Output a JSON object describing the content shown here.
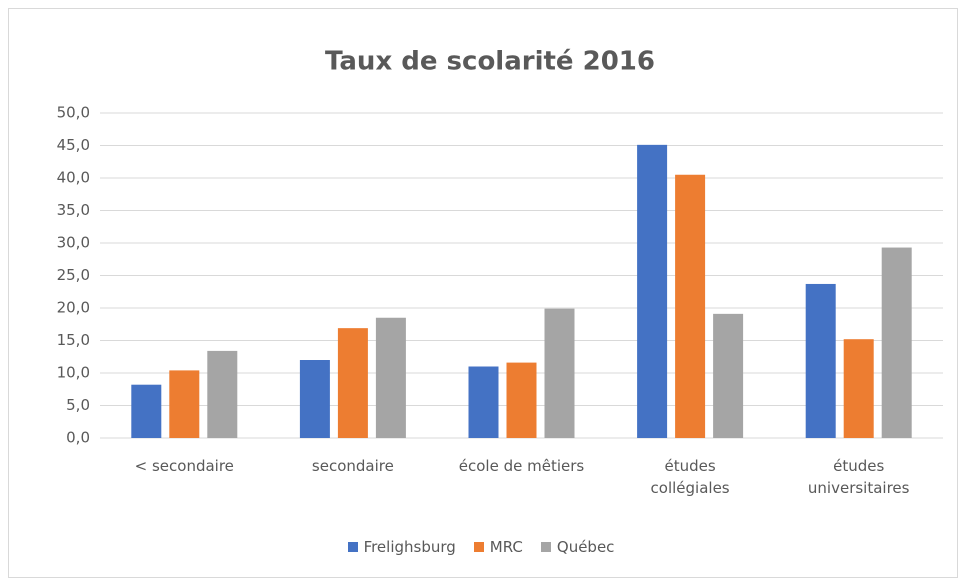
{
  "chart_data": {
    "type": "bar",
    "title": "Taux de scolarité 2016",
    "categories": [
      "< secondaire",
      "secondaire",
      "école de mêtiers",
      "études collégiales",
      "études universitaires"
    ],
    "series": [
      {
        "name": "Frelighsburg",
        "color": "#4472c4",
        "values": [
          8.2,
          12.0,
          11.0,
          45.1,
          23.7
        ]
      },
      {
        "name": "MRC",
        "color": "#ed7d31",
        "values": [
          10.4,
          16.9,
          11.6,
          40.5,
          15.2
        ]
      },
      {
        "name": "Québec",
        "color": "#a5a5a5",
        "values": [
          13.4,
          18.5,
          19.9,
          19.1,
          29.3
        ]
      }
    ],
    "ylim": [
      0,
      50
    ],
    "yticks": [
      {
        "value": 0,
        "label": "0,0"
      },
      {
        "value": 5,
        "label": "5,0"
      },
      {
        "value": 10,
        "label": "10,0"
      },
      {
        "value": 15,
        "label": "15,0"
      },
      {
        "value": 20,
        "label": "20,0"
      },
      {
        "value": 25,
        "label": "25,0"
      },
      {
        "value": 30,
        "label": "30,0"
      },
      {
        "value": 35,
        "label": "35,0"
      },
      {
        "value": 40,
        "label": "40,0"
      },
      {
        "value": 45,
        "label": "45,0"
      },
      {
        "value": 50,
        "label": "50,0"
      }
    ],
    "grid": true,
    "legend": "bottom"
  }
}
